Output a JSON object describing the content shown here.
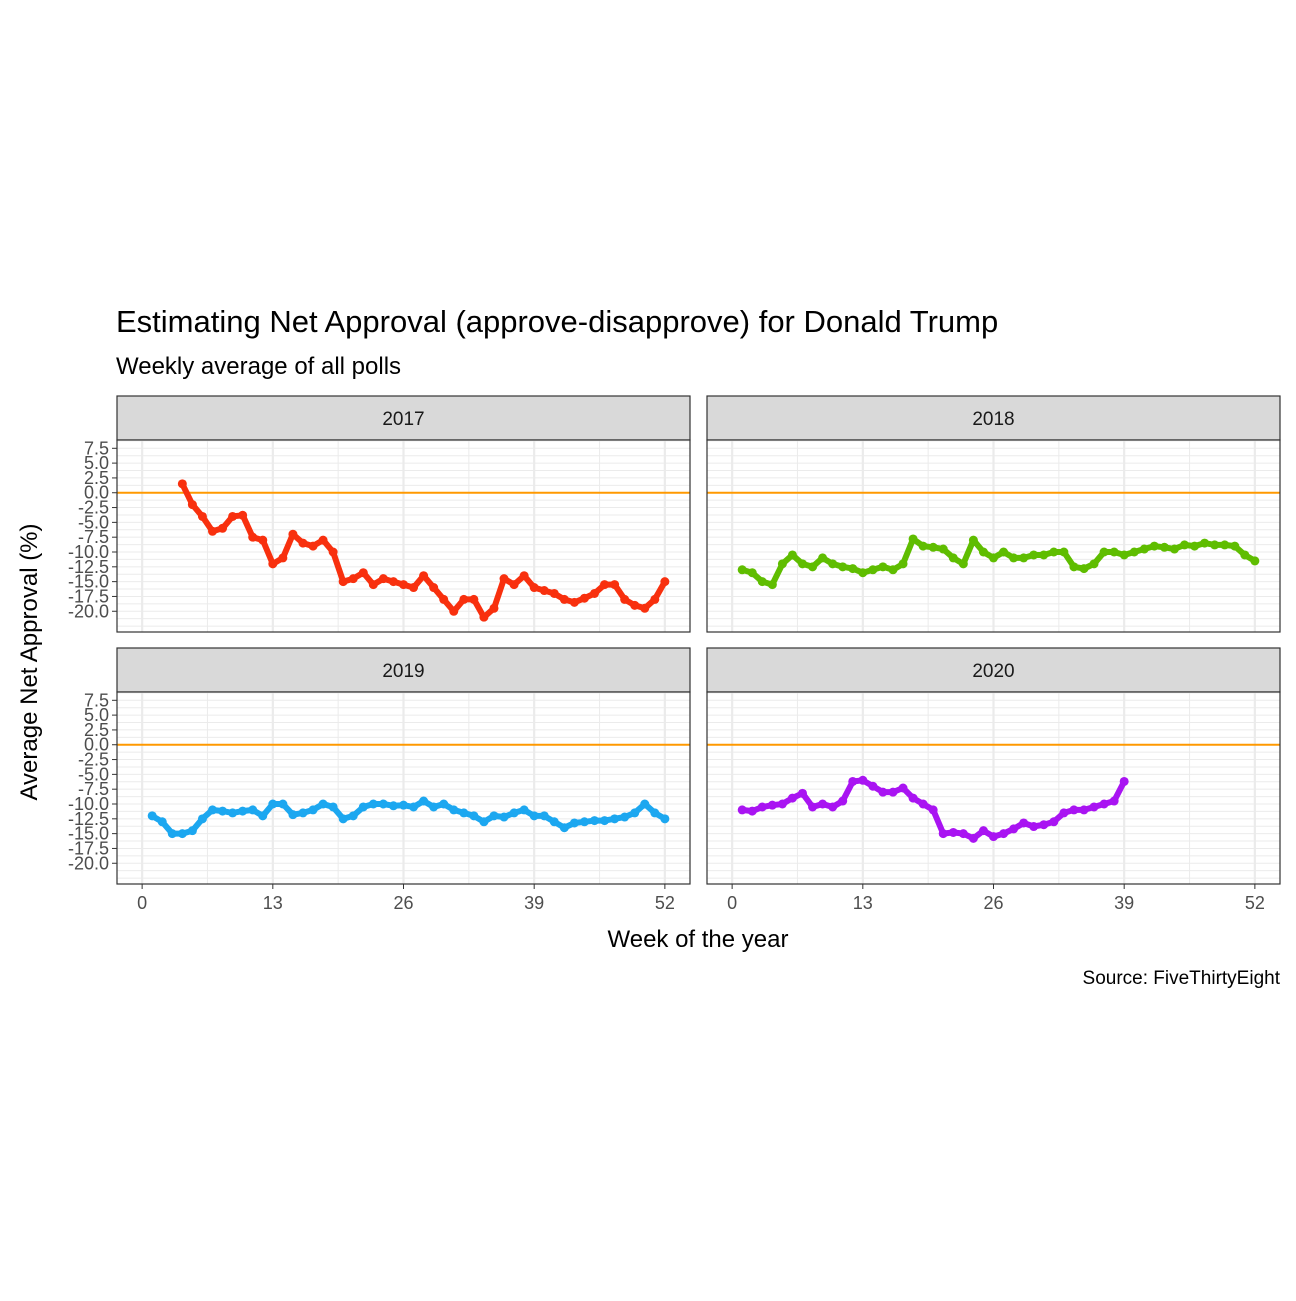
{
  "chart_data": {
    "type": "line",
    "title": "Estimating Net Approval (approve-disapprove) for Donald Trump",
    "subtitle": "Weekly average of all polls",
    "xlabel": "Week of the year",
    "ylabel": "Average Net Approval (%)",
    "caption": "Source: FiveThirtyEight",
    "xlim": [
      -2.5,
      54.5
    ],
    "ylim": [
      -23.5,
      8.9
    ],
    "x_ticks": [
      0,
      13,
      26,
      39,
      52
    ],
    "x_tick_labels": [
      "0",
      "13",
      "26",
      "39",
      "52"
    ],
    "y_ticks": [
      7.5,
      5.0,
      2.5,
      0.0,
      -2.5,
      -5.0,
      -7.5,
      -10.0,
      -12.5,
      -15.0,
      -17.5,
      -20.0
    ],
    "y_tick_labels": [
      "7.5",
      "5.0",
      "2.5",
      "0.0",
      "-2.5",
      "-5.0",
      "-7.5",
      "-10.0",
      "-12.5",
      "-15.0",
      "-17.5",
      "-20.0"
    ],
    "reference_line": {
      "y": 0,
      "color": "#ff9900"
    },
    "grid": true,
    "facets": [
      {
        "label": "2017",
        "color": "#f8300e",
        "x": [
          4,
          5,
          6,
          7,
          8,
          9,
          10,
          11,
          12,
          13,
          14,
          15,
          16,
          17,
          18,
          19,
          20,
          21,
          22,
          23,
          24,
          25,
          26,
          27,
          28,
          29,
          30,
          31,
          32,
          33,
          34,
          35,
          36,
          37,
          38,
          39,
          40,
          41,
          42,
          43,
          44,
          45,
          46,
          47,
          48,
          49,
          50,
          51,
          52
        ],
        "y": [
          1.5,
          -2,
          -4,
          -6.5,
          -6,
          -4,
          -3.8,
          -7.5,
          -8,
          -12,
          -11,
          -7,
          -8.5,
          -9,
          -8,
          -10,
          -15,
          -14.5,
          -13.5,
          -15.5,
          -14.5,
          -15,
          -15.5,
          -16,
          -14,
          -16,
          -18,
          -20,
          -18,
          -18,
          -21,
          -19.5,
          -14.5,
          -15.5,
          -14,
          -16,
          -16.5,
          -17,
          -18,
          -18.5,
          -17.8,
          -17,
          -15.5,
          -15.5,
          -18,
          -19,
          -19.5,
          -18,
          -15
        ]
      },
      {
        "label": "2018",
        "color": "#5fbd00",
        "x": [
          1,
          2,
          3,
          4,
          5,
          6,
          7,
          8,
          9,
          10,
          11,
          12,
          13,
          14,
          15,
          16,
          17,
          18,
          19,
          20,
          21,
          22,
          23,
          24,
          25,
          26,
          27,
          28,
          29,
          30,
          31,
          32,
          33,
          34,
          35,
          36,
          37,
          38,
          39,
          40,
          41,
          42,
          43,
          44,
          45,
          46,
          47,
          48,
          49,
          50,
          51,
          52
        ],
        "y": [
          -13,
          -13.5,
          -15,
          -15.5,
          -12,
          -10.5,
          -12,
          -12.5,
          -11,
          -12,
          -12.5,
          -12.8,
          -13.5,
          -13,
          -12.5,
          -13,
          -12,
          -7.8,
          -9,
          -9.2,
          -9.5,
          -11,
          -12,
          -8,
          -10,
          -11,
          -10,
          -11,
          -11,
          -10.5,
          -10.5,
          -10,
          -10,
          -12.5,
          -12.8,
          -12,
          -10,
          -10,
          -10.5,
          -10,
          -9.5,
          -9,
          -9.2,
          -9.5,
          -8.8,
          -9,
          -8.5,
          -8.8,
          -8.8,
          -9,
          -10.5,
          -11.5
        ]
      },
      {
        "label": "2019",
        "color": "#1ca7f0",
        "x": [
          1,
          2,
          3,
          4,
          5,
          6,
          7,
          8,
          9,
          10,
          11,
          12,
          13,
          14,
          15,
          16,
          17,
          18,
          19,
          20,
          21,
          22,
          23,
          24,
          25,
          26,
          27,
          28,
          29,
          30,
          31,
          32,
          33,
          34,
          35,
          36,
          37,
          38,
          39,
          40,
          41,
          42,
          43,
          44,
          45,
          46,
          47,
          48,
          49,
          50,
          51,
          52
        ],
        "y": [
          -12,
          -13,
          -15,
          -15,
          -14.5,
          -12.5,
          -11,
          -11.2,
          -11.5,
          -11.2,
          -11,
          -12,
          -10,
          -10,
          -11.8,
          -11.5,
          -11,
          -10,
          -10.5,
          -12.5,
          -12,
          -10.5,
          -10,
          -10,
          -10.3,
          -10.2,
          -10.5,
          -9.5,
          -10.5,
          -10,
          -11,
          -11.5,
          -12,
          -13,
          -12,
          -12.2,
          -11.5,
          -11,
          -12,
          -12,
          -13,
          -14,
          -13.2,
          -13,
          -12.8,
          -12.8,
          -12.5,
          -12.2,
          -11.5,
          -10,
          -11.5,
          -12.5
        ]
      },
      {
        "label": "2020",
        "color": "#a914f2",
        "x": [
          1,
          2,
          3,
          4,
          5,
          6,
          7,
          8,
          9,
          10,
          11,
          12,
          13,
          14,
          15,
          16,
          17,
          18,
          19,
          20,
          21,
          22,
          23,
          24,
          25,
          26,
          27,
          28,
          29,
          30,
          31,
          32,
          33,
          34,
          35,
          36,
          37,
          38,
          39
        ],
        "y": [
          -11,
          -11.2,
          -10.5,
          -10.2,
          -10,
          -9,
          -8.2,
          -10.5,
          -10,
          -10.5,
          -9.5,
          -6.2,
          -6,
          -7,
          -8,
          -8,
          -7.3,
          -9,
          -10,
          -11,
          -15,
          -14.8,
          -15,
          -15.8,
          -14.5,
          -15.5,
          -15,
          -14.2,
          -13.2,
          -13.8,
          -13.5,
          -13,
          -11.5,
          -11,
          -11,
          -10.5,
          -10,
          -9.5,
          -6.2
        ]
      }
    ]
  }
}
